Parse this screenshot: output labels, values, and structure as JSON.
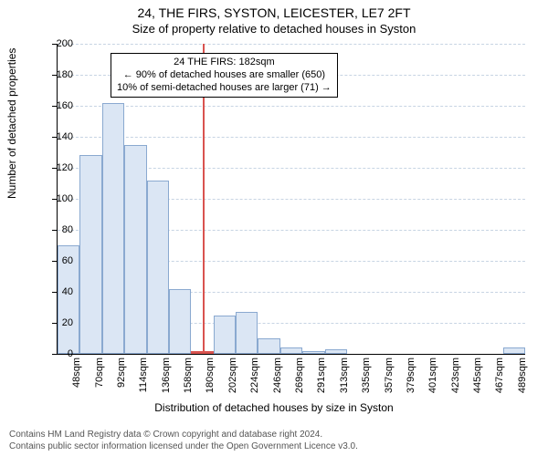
{
  "title_line1": "24, THE FIRS, SYSTON, LEICESTER, LE7 2FT",
  "title_line2": "Size of property relative to detached houses in Syston",
  "ylabel": "Number of detached properties",
  "xlabel": "Distribution of detached houses by size in Syston",
  "footer_line1": "Contains HM Land Registry data © Crown copyright and database right 2024.",
  "footer_line2": "Contains public sector information licensed under the Open Government Licence v3.0.",
  "chart": {
    "type": "histogram",
    "ymax": 200,
    "ytick_step": 20,
    "bar_fill": "#dbe6f4",
    "bar_stroke": "#8aa9d0",
    "grid_color": "#c7d4e3",
    "background_color": "#ffffff",
    "marker_color": "#d9534f",
    "marker_value": 182,
    "subject_bin_index": 6,
    "categories": [
      "48sqm",
      "70sqm",
      "92sqm",
      "114sqm",
      "136sqm",
      "158sqm",
      "180sqm",
      "202sqm",
      "224sqm",
      "246sqm",
      "269sqm",
      "291sqm",
      "313sqm",
      "335sqm",
      "357sqm",
      "379sqm",
      "401sqm",
      "423sqm",
      "445sqm",
      "467sqm",
      "489sqm"
    ],
    "values": [
      70,
      128,
      162,
      135,
      112,
      42,
      2,
      25,
      27,
      10,
      4,
      2,
      3,
      0,
      0,
      0,
      0,
      0,
      0,
      0,
      4
    ],
    "annotation": {
      "line1": "24 THE FIRS: 182sqm",
      "line2": "← 90% of detached houses are smaller (650)",
      "line3": "10% of semi-detached houses are larger (71) →"
    }
  }
}
